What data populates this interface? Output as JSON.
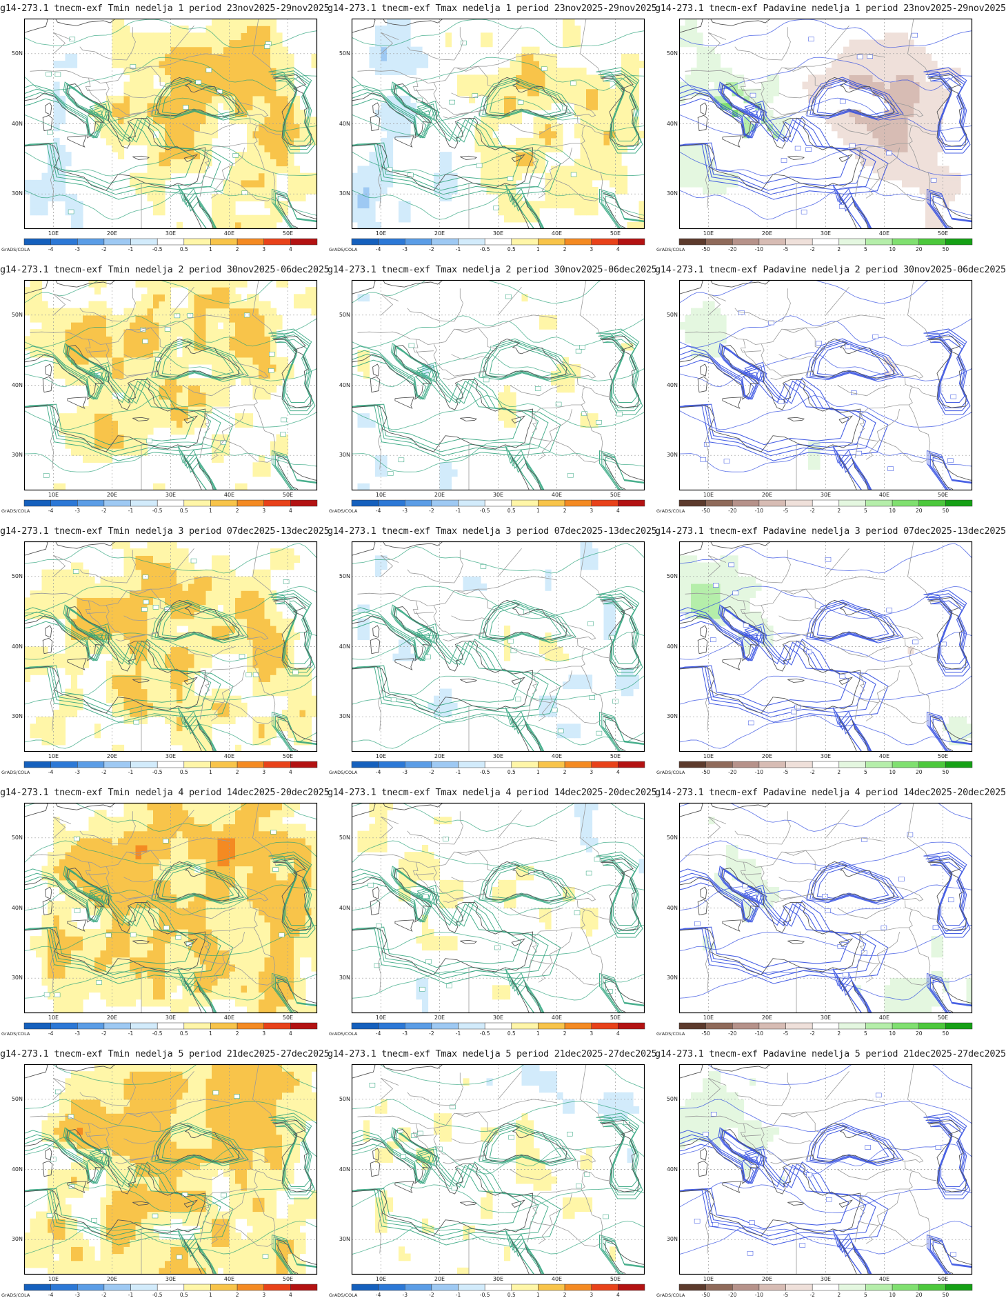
{
  "source_label": "GrADS/COLA",
  "lat_labels": [
    "50N",
    "40N",
    "30N"
  ],
  "lon_labels": [
    "10E",
    "20E",
    "30E",
    "40E",
    "50E"
  ],
  "colorbars": {
    "temperature": {
      "labels": [
        "-4",
        "-3",
        "-2",
        "-1",
        "-0.5",
        "0.5",
        "1",
        "2",
        "3",
        "4"
      ],
      "colors": [
        "#1560bd",
        "#2c78d6",
        "#5b9de6",
        "#9ec9f3",
        "#d2ebfb",
        "#ffffff",
        "#fff6a8",
        "#f8c44a",
        "#f48a22",
        "#e8421a",
        "#b31212"
      ]
    },
    "precipitation": {
      "labels": [
        "-50",
        "-20",
        "-10",
        "-5",
        "-2",
        "2",
        "5",
        "10",
        "20",
        "50"
      ],
      "colors": [
        "#5c3a2c",
        "#8f6a5a",
        "#b6928a",
        "#d7bcb4",
        "#efe0da",
        "#ffffff",
        "#e4f7e0",
        "#b5eeaa",
        "#80e070",
        "#4cc83c",
        "#15a015"
      ]
    }
  },
  "panels": [
    {
      "title": "g14-273.1 tnecm-exf Tmin nedelja 1 period 23nov2025-29nov2025",
      "var": "tmin",
      "week": 1
    },
    {
      "title": "g14-273.1 tnecm-exf Tmax nedelja 1 period 23nov2025-29nov2025",
      "var": "tmax",
      "week": 1
    },
    {
      "title": "g14-273.1 tnecm-exf Padavine nedelja 1 period 23nov2025-29nov2025",
      "var": "pad",
      "week": 1
    },
    {
      "title": "g14-273.1 tnecm-exf Tmin nedelja 2 period 30nov2025-06dec2025",
      "var": "tmin",
      "week": 2
    },
    {
      "title": "g14-273.1 tnecm-exf Tmax nedelja 2 period 30nov2025-06dec2025",
      "var": "tmax",
      "week": 2
    },
    {
      "title": "g14-273.1 tnecm-exf Padavine nedelja 2 period 30nov2025-06dec2025",
      "var": "pad",
      "week": 2
    },
    {
      "title": "g14-273.1 tnecm-exf Tmin nedelja 3 period 07dec2025-13dec2025",
      "var": "tmin",
      "week": 3
    },
    {
      "title": "g14-273.1 tnecm-exf Tmax nedelja 3 period 07dec2025-13dec2025",
      "var": "tmax",
      "week": 3
    },
    {
      "title": "g14-273.1 tnecm-exf Padavine nedelja 3 period 07dec2025-13dec2025",
      "var": "pad",
      "week": 3
    },
    {
      "title": "g14-273.1 tnecm-exf Tmin nedelja 4 period 14dec2025-20dec2025",
      "var": "tmin",
      "week": 4
    },
    {
      "title": "g14-273.1 tnecm-exf Tmax nedelja 4 period 14dec2025-20dec2025",
      "var": "tmax",
      "week": 4
    },
    {
      "title": "g14-273.1 tnecm-exf Padavine nedelja 4 period 14dec2025-20dec2025",
      "var": "pad",
      "week": 4
    },
    {
      "title": "g14-273.1 tnecm-exf Tmin nedelja 5 period 21dec2025-27dec2025",
      "var": "tmin",
      "week": 5
    },
    {
      "title": "g14-273.1 tnecm-exf Tmax nedelja 5 period 21dec2025-27dec2025",
      "var": "tmax",
      "week": 5
    },
    {
      "title": "g14-273.1 tnecm-exf Padavine nedelja 5 period 21dec2025-27dec2025",
      "var": "pad",
      "week": 5
    }
  ]
}
